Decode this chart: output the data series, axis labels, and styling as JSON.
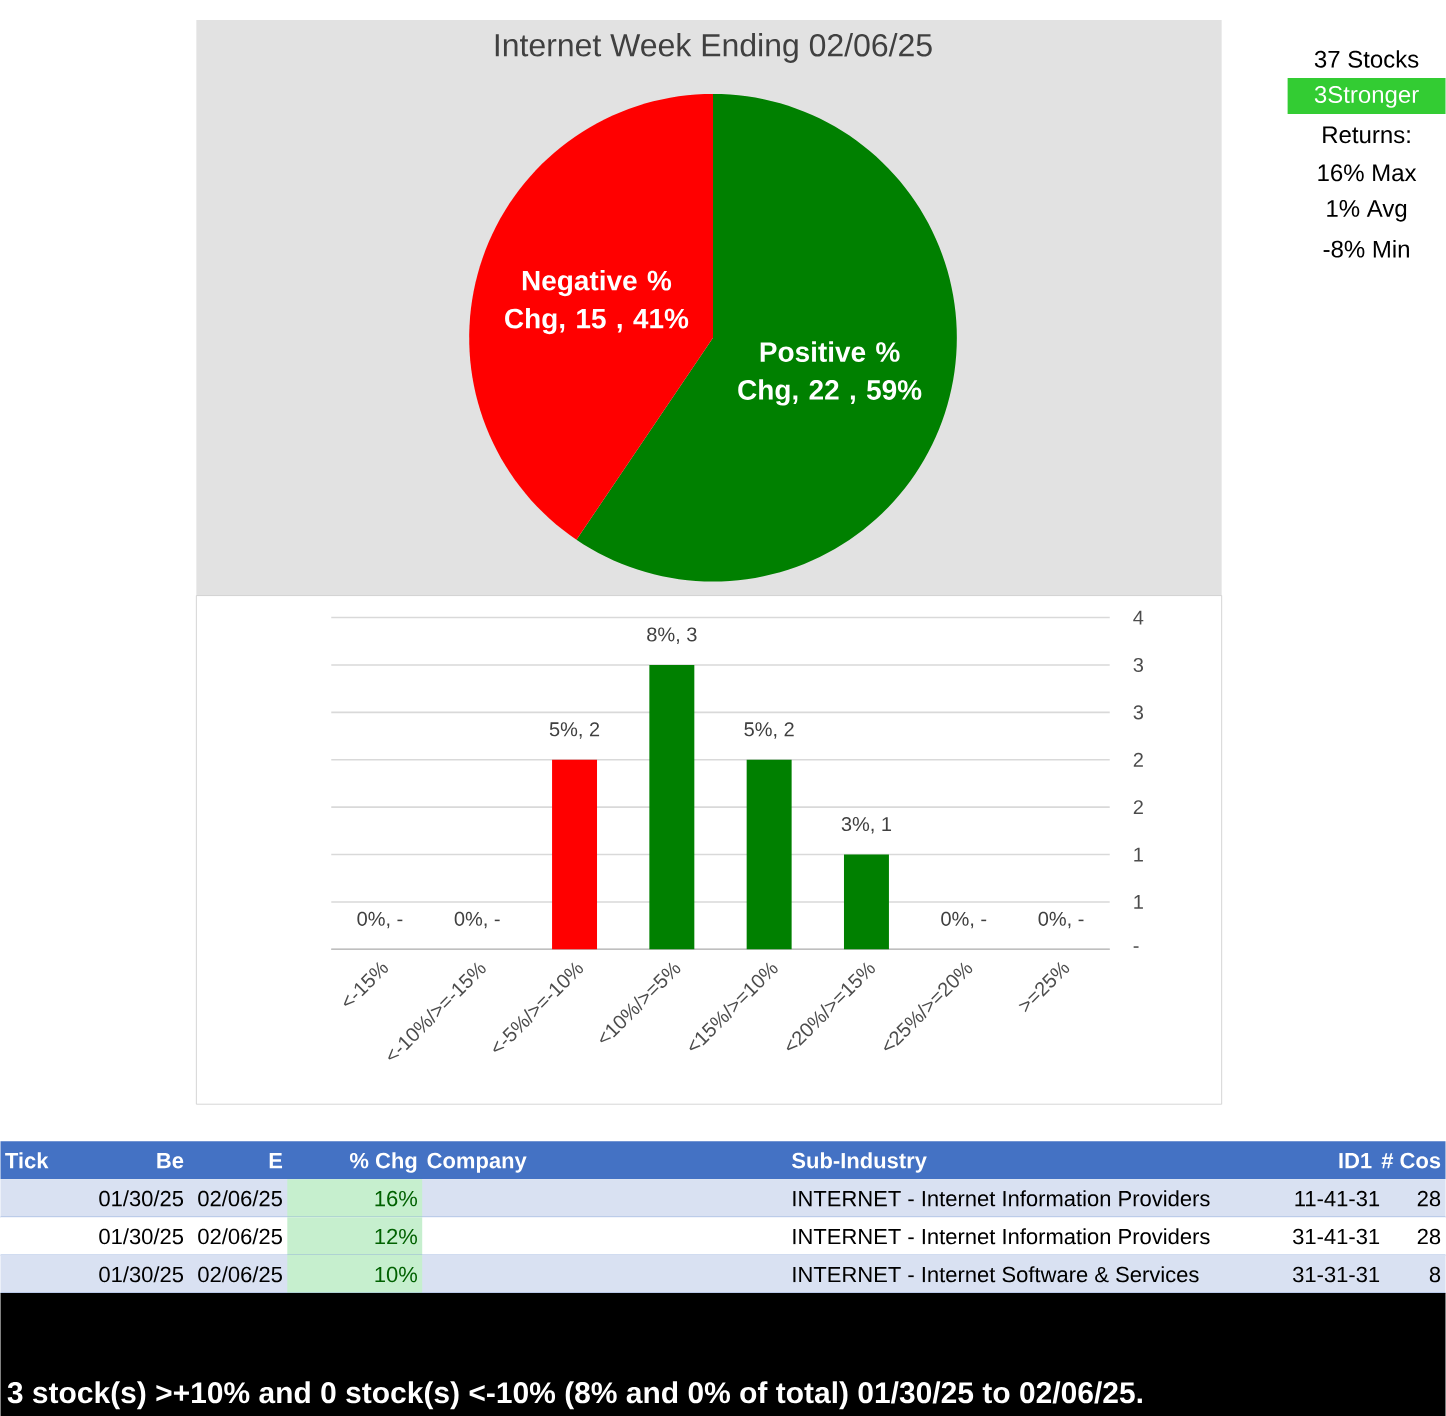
{
  "chart_data": [
    {
      "type": "pie",
      "title": "Internet Week Ending 02/06/25",
      "categories": [
        "Positive % Chg",
        "Negative % Chg"
      ],
      "values": [
        22,
        15
      ],
      "colors": [
        "#008000",
        "#ff0000"
      ],
      "value_labels": [
        ",  22 , 59%",
        ",  15 , 41%"
      ]
    },
    {
      "type": "bar",
      "categories": [
        "<-15%",
        "<-10%/>=-15%",
        "<-5%/>=-10%",
        "<10%/>=5%",
        "<15%/>=10%",
        "<20%/>=15%",
        "<25%/>=20%",
        ">=25%"
      ],
      "values": [
        0,
        0,
        2,
        3,
        2,
        1,
        0,
        0
      ],
      "colors": [
        "#ff0000",
        "#ff0000",
        "#ff0000",
        "#008000",
        "#008000",
        "#008000",
        "#008000",
        "#008000"
      ],
      "value_labels": [
        "0%,  -",
        "0%,  -",
        "5%,  2",
        "8%,  3",
        "5%,  2",
        "3%,  1",
        "0%,  -",
        "0%,  -"
      ],
      "ylim": [
        0,
        3.5
      ],
      "yticks": [
        {
          "value": 0,
          "label": "-"
        },
        {
          "value": 0.5,
          "label": "1"
        },
        1,
        {
          "value": 1.5,
          "label": "2"
        },
        2,
        {
          "value": 2.5,
          "label": "3"
        },
        3,
        {
          "value": 3.5,
          "label": "4"
        }
      ],
      "grid": "y"
    },
    {
      "type": "other",
      "color": "#33cc33",
      "annotations": [
        "37 Stocks",
        "3Stronger",
        "Returns:",
        "16% Max",
        "1% Avg",
        "-8% Min"
      ]
    },
    {
      "type": "other",
      "categories": [
        "Tick",
        "Be",
        "E",
        "% Chg",
        "Company",
        "Sub-Industry",
        "ID1",
        "# Cos"
      ],
      "cell_labels": [
        [
          null,
          "01/30/25",
          "02/06/25",
          "16%",
          null,
          "INTERNET - Internet Information Providers",
          "11-41-31",
          "28"
        ],
        [
          null,
          "01/30/25",
          "02/06/25",
          "12%",
          null,
          "INTERNET - Internet Information Providers",
          "31-41-31",
          "28"
        ],
        [
          null,
          "01/30/25",
          "02/06/25",
          "10%",
          null,
          "INTERNET - Internet Software & Services",
          "31-31-31",
          "8"
        ]
      ],
      "annotations": [
        "3 stock(s) >+10% and 0 stock(s) <-10% (8% and 0% of total) 01/30/25 to 02/06/25."
      ]
    }
  ]
}
